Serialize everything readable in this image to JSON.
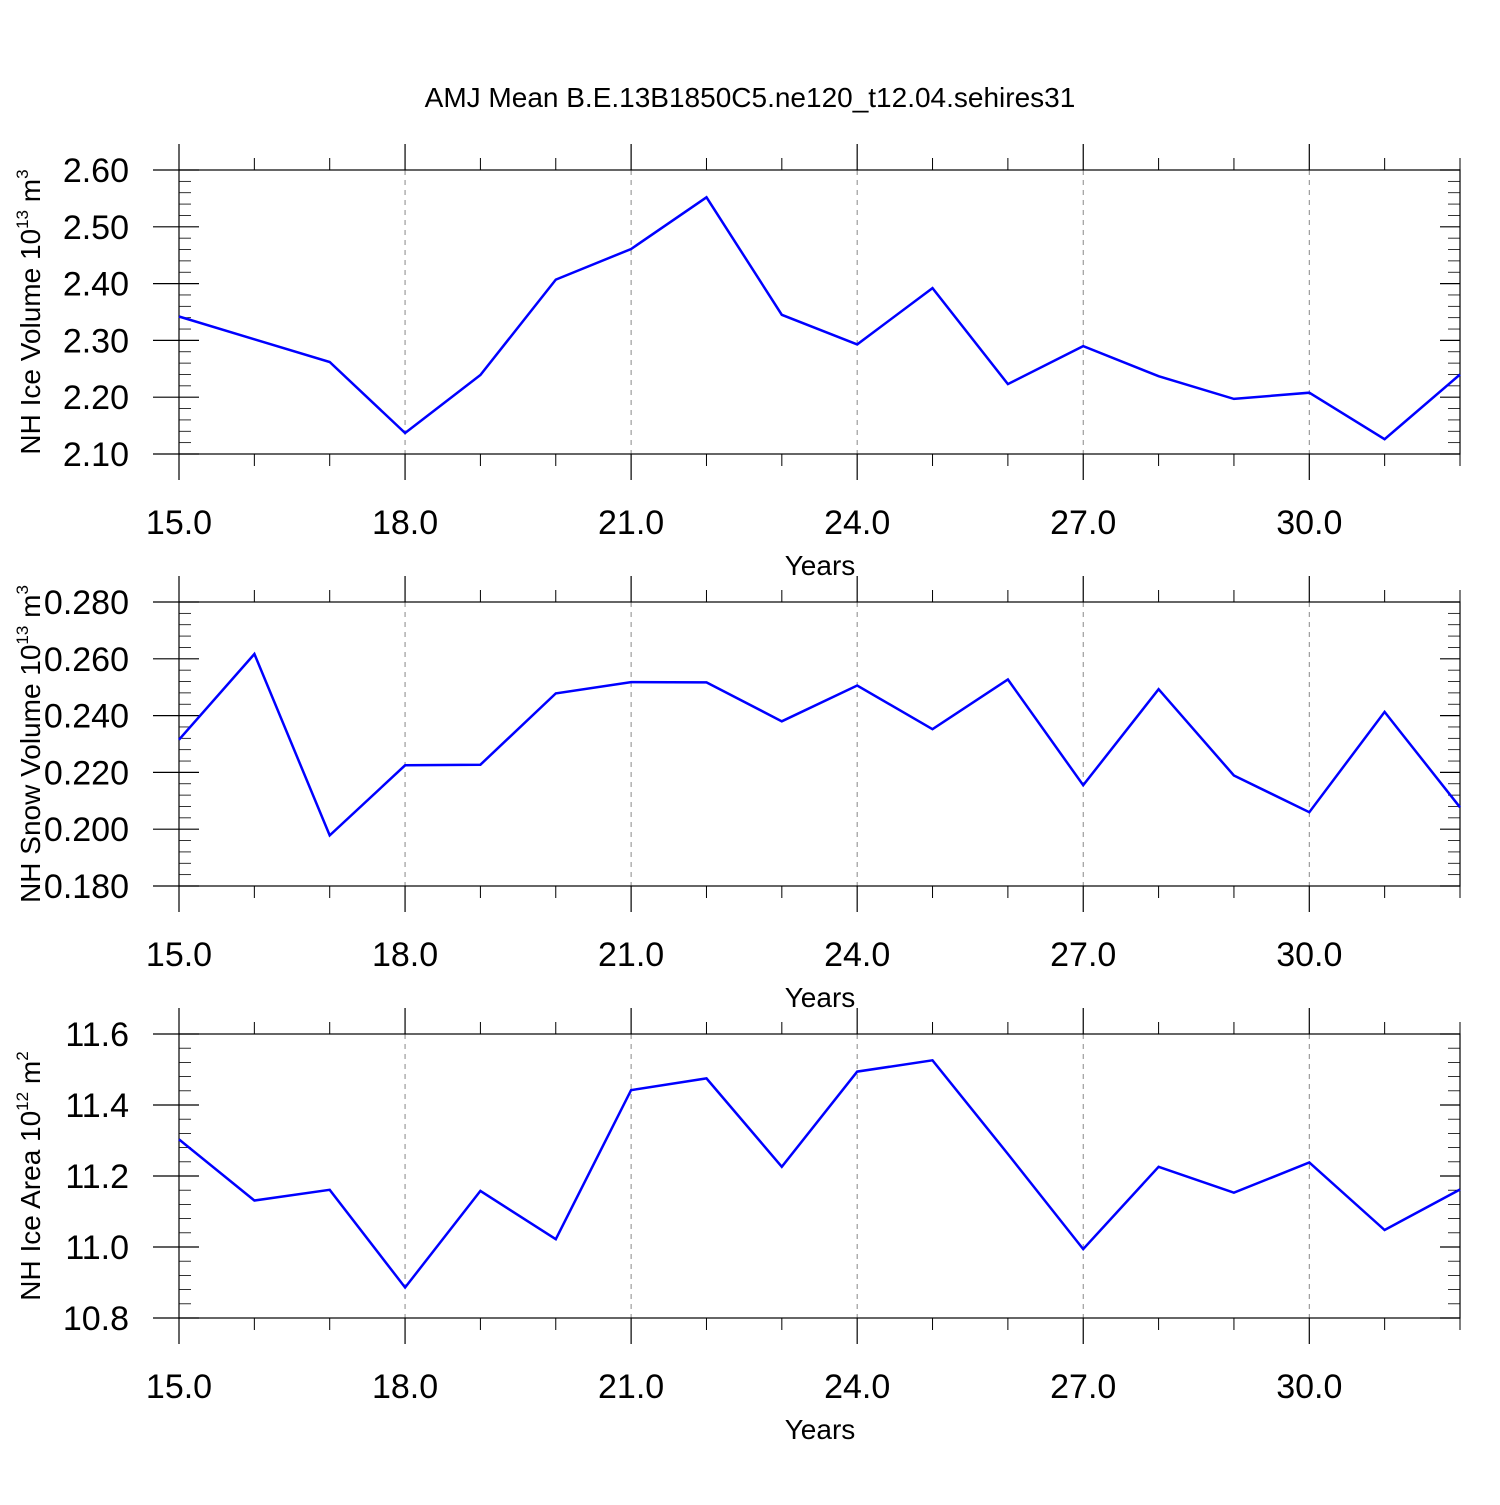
{
  "figure_title": "AMJ Mean B.E.13B1850C5.ne120_t12.04.sehires31",
  "chart_data": [
    {
      "type": "line",
      "xlabel": "Years",
      "ylabel": {
        "prefix": "NH Ice Volume 10",
        "exponent": "13",
        "unit": "m",
        "unit_exponent": "3"
      },
      "xlim": [
        15,
        32
      ],
      "ylim": [
        2.1,
        2.6
      ],
      "x_ticks": [
        15,
        18,
        21,
        24,
        27,
        30
      ],
      "x_tick_labels": [
        "15.0",
        "18.0",
        "21.0",
        "24.0",
        "27.0",
        "30.0"
      ],
      "y_ticks": [
        2.1,
        2.2,
        2.3,
        2.4,
        2.5,
        2.6
      ],
      "y_tick_labels": [
        "2.10",
        "2.20",
        "2.30",
        "2.40",
        "2.50",
        "2.60"
      ],
      "y_minor_step": 0.02,
      "grid": "vertical dashed at major x ticks",
      "series": [
        {
          "color": "#0000ff",
          "x": [
            15,
            16,
            17,
            18,
            19,
            20,
            21,
            22,
            23,
            24,
            25,
            26,
            27,
            28,
            29,
            30,
            31,
            32
          ],
          "values": [
            2.342,
            2.302,
            2.262,
            2.137,
            2.239,
            2.407,
            2.461,
            2.552,
            2.345,
            2.293,
            2.392,
            2.223,
            2.29,
            2.237,
            2.197,
            2.208,
            2.126,
            2.24
          ]
        }
      ]
    },
    {
      "type": "line",
      "xlabel": "Years",
      "ylabel": {
        "prefix": "NH Snow Volume 10",
        "exponent": "13",
        "unit": "m",
        "unit_exponent": "3"
      },
      "xlim": [
        15,
        32
      ],
      "ylim": [
        0.18,
        0.28
      ],
      "x_ticks": [
        15,
        18,
        21,
        24,
        27,
        30
      ],
      "x_tick_labels": [
        "15.0",
        "18.0",
        "21.0",
        "24.0",
        "27.0",
        "30.0"
      ],
      "y_ticks": [
        0.18,
        0.2,
        0.22,
        0.24,
        0.26,
        0.28
      ],
      "y_tick_labels": [
        "0.180",
        "0.200",
        "0.220",
        "0.240",
        "0.260",
        "0.280"
      ],
      "y_minor_step": 0.004,
      "grid": "vertical dashed at major x ticks",
      "series": [
        {
          "color": "#0000ff",
          "x": [
            15,
            16,
            17,
            18,
            19,
            20,
            21,
            22,
            23,
            24,
            25,
            26,
            27,
            28,
            29,
            30,
            31,
            32
          ],
          "values": [
            0.2315,
            0.2617,
            0.1978,
            0.2225,
            0.2227,
            0.2478,
            0.2518,
            0.2517,
            0.238,
            0.2506,
            0.2352,
            0.2527,
            0.2155,
            0.2493,
            0.2189,
            0.206,
            0.2413,
            0.2077
          ]
        }
      ]
    },
    {
      "type": "line",
      "xlabel": "Years",
      "ylabel": {
        "prefix": "NH Ice Area 10",
        "exponent": "12",
        "unit": "m",
        "unit_exponent": "2"
      },
      "xlim": [
        15,
        32
      ],
      "ylim": [
        10.8,
        11.6
      ],
      "x_ticks": [
        15,
        18,
        21,
        24,
        27,
        30
      ],
      "x_tick_labels": [
        "15.0",
        "18.0",
        "21.0",
        "24.0",
        "27.0",
        "30.0"
      ],
      "y_ticks": [
        10.8,
        11.0,
        11.2,
        11.4,
        11.6
      ],
      "y_tick_labels": [
        "10.8",
        "11.0",
        "11.2",
        "11.4",
        "11.6"
      ],
      "y_minor_step": 0.04,
      "grid": "vertical dashed at major x ticks",
      "series": [
        {
          "color": "#0000ff",
          "x": [
            15,
            16,
            17,
            18,
            19,
            20,
            21,
            22,
            23,
            24,
            25,
            26,
            27,
            28,
            29,
            30,
            31,
            32
          ],
          "values": [
            11.303,
            11.131,
            11.161,
            10.886,
            11.158,
            11.022,
            11.442,
            11.475,
            11.226,
            11.494,
            11.526,
            11.262,
            10.994,
            11.226,
            11.153,
            11.238,
            11.048,
            11.162
          ]
        }
      ]
    }
  ]
}
